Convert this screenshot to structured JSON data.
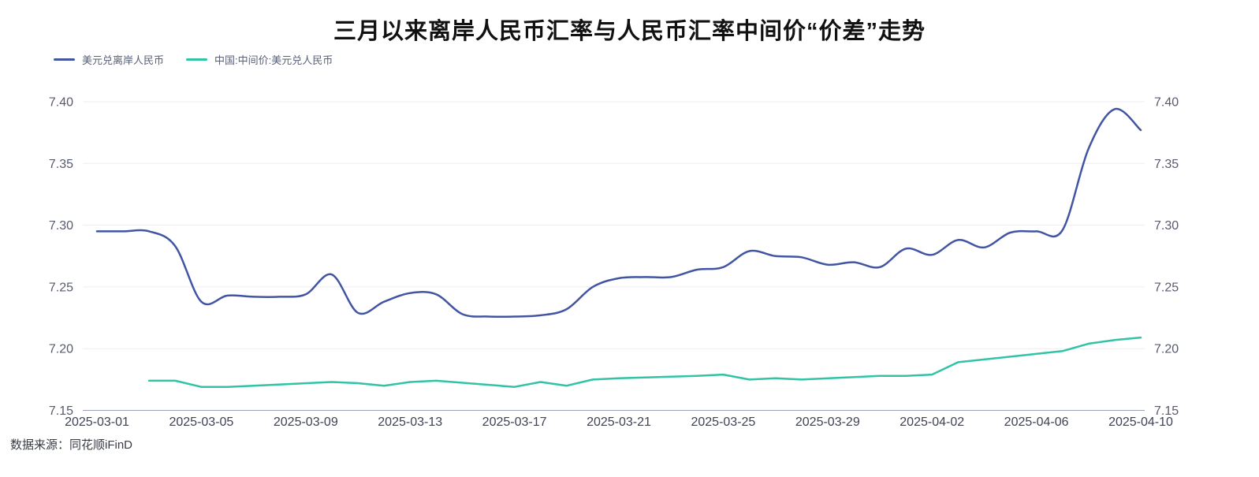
{
  "title": "三月以来离岸人民币汇率与人民币汇率中间价“价差”走势",
  "source_note": "数据来源：同花顺iFinD",
  "legend": [
    {
      "label": "美元兑离岸人民币",
      "color": "#4155a3"
    },
    {
      "label": "中国:中间价:美元兑人民币",
      "color": "#30c3a5"
    }
  ],
  "colors": {
    "grid_line": "#ededf1",
    "axis_line": "#9aa0b8",
    "y_tick_text": "#565b6e",
    "x_tick_text": "#3e4356",
    "title_text": "#111111"
  },
  "chart_data": {
    "type": "line",
    "title": "三月以来离岸人民币汇率与人民币汇率中间价“价差”走势",
    "xlabel": "",
    "ylabel": "",
    "ylim": [
      7.15,
      7.4
    ],
    "grid": true,
    "legend_position": "top-left",
    "x_start_date": "2025-03-01",
    "x_span_days": 40,
    "y_ticks": [
      7.15,
      7.2,
      7.25,
      7.3,
      7.35,
      7.4
    ],
    "x_tick_labels": [
      "2025-03-01",
      "2025-03-05",
      "2025-03-09",
      "2025-03-13",
      "2025-03-17",
      "2025-03-21",
      "2025-03-25",
      "2025-03-29",
      "2025-04-02",
      "2025-04-06",
      "2025-04-10"
    ],
    "series": [
      {
        "name": "美元兑离岸人民币",
        "color": "#4155a3",
        "smooth": true,
        "dates": [
          "2025-03-01",
          "2025-03-02",
          "2025-03-03",
          "2025-03-04",
          "2025-03-05",
          "2025-03-06",
          "2025-03-07",
          "2025-03-08",
          "2025-03-09",
          "2025-03-10",
          "2025-03-11",
          "2025-03-12",
          "2025-03-13",
          "2025-03-14",
          "2025-03-15",
          "2025-03-16",
          "2025-03-17",
          "2025-03-18",
          "2025-03-19",
          "2025-03-20",
          "2025-03-21",
          "2025-03-22",
          "2025-03-23",
          "2025-03-24",
          "2025-03-25",
          "2025-03-26",
          "2025-03-27",
          "2025-03-28",
          "2025-03-29",
          "2025-03-30",
          "2025-03-31",
          "2025-04-01",
          "2025-04-02",
          "2025-04-03",
          "2025-04-04",
          "2025-04-05",
          "2025-04-06",
          "2025-04-07",
          "2025-04-08",
          "2025-04-09",
          "2025-04-10"
        ],
        "values": [
          7.295,
          7.295,
          7.295,
          7.283,
          7.238,
          7.243,
          7.242,
          7.242,
          7.244,
          7.26,
          7.229,
          7.238,
          7.245,
          7.244,
          7.228,
          7.226,
          7.226,
          7.227,
          7.232,
          7.25,
          7.257,
          7.258,
          7.258,
          7.264,
          7.266,
          7.279,
          7.275,
          7.274,
          7.268,
          7.27,
          7.266,
          7.281,
          7.276,
          7.288,
          7.282,
          7.294,
          7.295,
          7.296,
          7.362,
          7.394,
          7.377
        ]
      },
      {
        "name": "中国:中间价:美元兑人民币",
        "color": "#30c3a5",
        "smooth": false,
        "dates": [
          "2025-03-03",
          "2025-03-04",
          "2025-03-05",
          "2025-03-06",
          "2025-03-07",
          "2025-03-10",
          "2025-03-11",
          "2025-03-12",
          "2025-03-13",
          "2025-03-14",
          "2025-03-17",
          "2025-03-18",
          "2025-03-19",
          "2025-03-20",
          "2025-03-21",
          "2025-03-24",
          "2025-03-25",
          "2025-03-26",
          "2025-03-27",
          "2025-03-28",
          "2025-03-31",
          "2025-04-01",
          "2025-04-02",
          "2025-04-03",
          "2025-04-07",
          "2025-04-08",
          "2025-04-09",
          "2025-04-10"
        ],
        "values": [
          7.174,
          7.174,
          7.169,
          7.169,
          7.17,
          7.173,
          7.172,
          7.17,
          7.173,
          7.174,
          7.169,
          7.173,
          7.17,
          7.175,
          7.176,
          7.178,
          7.179,
          7.175,
          7.176,
          7.175,
          7.178,
          7.178,
          7.179,
          7.189,
          7.198,
          7.204,
          7.207,
          7.209
        ]
      }
    ]
  }
}
